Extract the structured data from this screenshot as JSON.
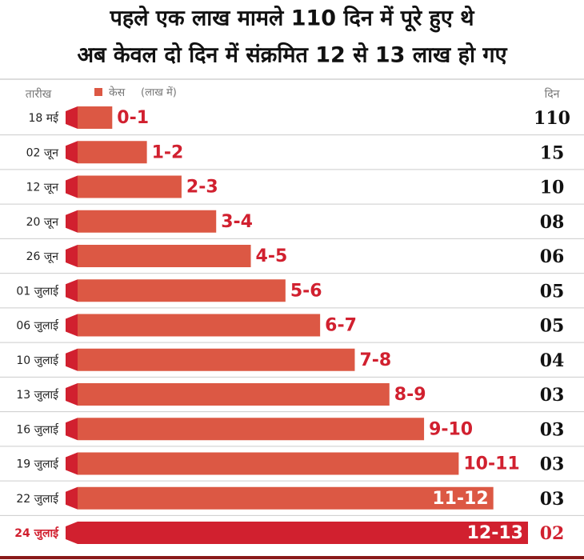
{
  "chart_data": {
    "type": "bar",
    "title": [
      "पहले एक लाख मामले 110 दिन में पूरे हुए थे",
      "अब केवल दो दिन में संक्रमित 12 से 13 लाख हो गए"
    ],
    "date_header": "तारीख",
    "days_header": "दिन",
    "legend": {
      "name": "केस",
      "unit": "(लाख में)"
    },
    "categories": [
      "18 मई",
      "02 जून",
      "12 जून",
      "20 जून",
      "26 जून",
      "01 जुलाई",
      "06 जुलाई",
      "10 जुलाई",
      "13 जुलाई",
      "16 जुलाई",
      "19 जुलाई",
      "22 जुलाई",
      "24 जुलाई"
    ],
    "values": [
      1,
      2,
      3,
      4,
      5,
      6,
      7,
      8,
      9,
      10,
      11,
      12,
      13
    ],
    "value_labels": [
      "0-1",
      "1-2",
      "2-3",
      "3-4",
      "4-5",
      "5-6",
      "6-7",
      "7-8",
      "8-9",
      "9-10",
      "10-11",
      "11-12",
      "12-13"
    ],
    "days": [
      "110",
      "15",
      "10",
      "08",
      "06",
      "05",
      "05",
      "04",
      "03",
      "03",
      "03",
      "03",
      "02"
    ],
    "color": "#dc5844",
    "highlight_color": "#d1202f"
  }
}
